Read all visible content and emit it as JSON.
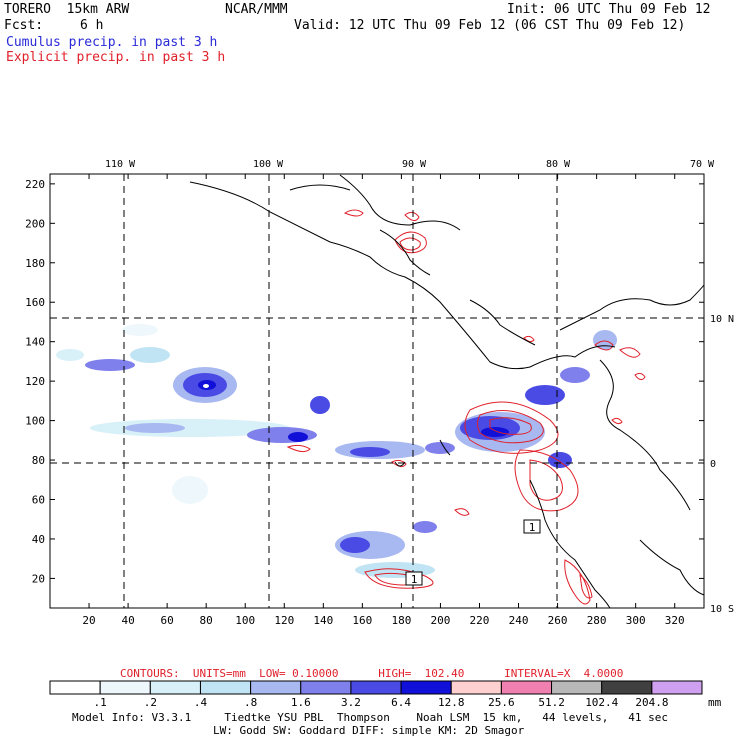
{
  "header": {
    "model": "TORERO  15km ARW",
    "org": "NCAR/MMM",
    "init": "Init: 06 UTC Thu 09 Feb 12",
    "fcst_label": "Fcst:",
    "fcst_value": "6 h",
    "valid": "Valid: 12 UTC Thu 09 Feb 12 (06 CST Thu 09 Feb 12)",
    "line1": "Cumulus precip. in past 3 h",
    "line2": "Explicit precip. in past 3 h"
  },
  "colors": {
    "cumulus": "#2a2ad8",
    "explicit": "#e0202a",
    "grid": "#000000"
  },
  "chart_data": {
    "type": "heatmap",
    "x_ticks": [
      20,
      40,
      60,
      80,
      100,
      120,
      140,
      160,
      180,
      200,
      220,
      240,
      260,
      280,
      300,
      320
    ],
    "y_ticks": [
      20,
      40,
      60,
      80,
      100,
      120,
      140,
      160,
      180,
      200,
      220
    ],
    "xlim": [
      0,
      335
    ],
    "ylim": [
      5,
      225
    ],
    "lon_labels": [
      "110 W",
      "100 W",
      "90 W",
      "80 W",
      "70 W"
    ],
    "lat_labels": [
      "10 N",
      "0",
      "10 S"
    ],
    "contour_info": "CONTOURS:  UNITS=mm  LOW= 0.10000      HIGH=  102.40      INTERVAL=X  4.0000",
    "colorbar": {
      "unit": "mm",
      "ticks": [
        ".1",
        ".2",
        ".4",
        ".8",
        "1.6",
        "3.2",
        "6.4",
        "12.8",
        "25.6",
        "51.2",
        "102.4",
        "204.8"
      ],
      "colors": [
        "#ffffff",
        "#eef8fc",
        "#d8f0f8",
        "#c0e4f4",
        "#a8b8f0",
        "#7f80ec",
        "#4a4ae4",
        "#1010d8",
        "#ffd0d0",
        "#f080b0",
        "#b8b8b8",
        "#404040",
        "#d0a0f0"
      ]
    },
    "box_labels": [
      "1",
      "1"
    ]
  },
  "footer": {
    "line1": "Model Info: V3.3.1     Tiedtke YSU PBL  Thompson    Noah LSM  15 km,   44 levels,   41 sec",
    "line2": "LW: Godd SW: Goddard DIFF: simple KM: 2D Smagor"
  }
}
